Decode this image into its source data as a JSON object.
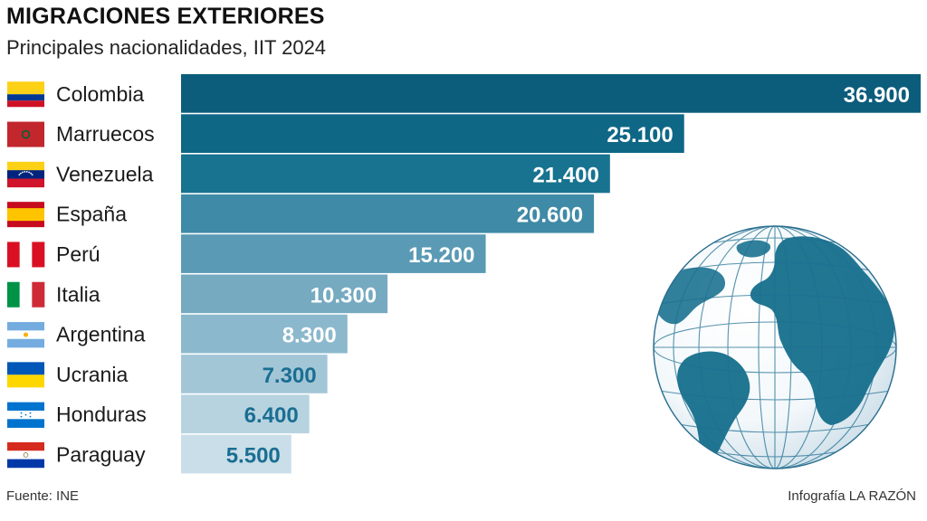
{
  "header": {
    "title": "MIGRACIONES EXTERIORES",
    "subtitle": "Principales nacionalidades, IIT 2024"
  },
  "footer": {
    "source": "Fuente: INE",
    "credit": "Infografía LA RAZÓN"
  },
  "colors": {
    "bars": [
      "#0c5d7b",
      "#0f6786",
      "#17738f",
      "#3f8aa6",
      "#5a9ab4",
      "#75aac0",
      "#8bb8cc",
      "#a3c6d7",
      "#b7d3e0",
      "#c9dee8"
    ],
    "value_text_dark_bars": "#ffffff",
    "value_text_light_bars": "#1a6e92"
  },
  "chart_data": {
    "type": "bar",
    "orientation": "horizontal",
    "title": "MIGRACIONES EXTERIORES",
    "subtitle": "Principales nacionalidades, IIT 2024",
    "categories": [
      "Colombia",
      "Marruecos",
      "Venezuela",
      "España",
      "Perú",
      "Italia",
      "Argentina",
      "Ucrania",
      "Honduras",
      "Paraguay"
    ],
    "values": [
      36900,
      25100,
      21400,
      20600,
      15200,
      10300,
      8300,
      7300,
      6400,
      5500
    ],
    "value_labels": [
      "36.900",
      "25.100",
      "21.400",
      "20.600",
      "15.200",
      "10.300",
      "8.300",
      "7.300",
      "6.400",
      "5.500"
    ],
    "flags": [
      "colombia-flag",
      "morocco-flag",
      "venezuela-flag",
      "spain-flag",
      "peru-flag",
      "italy-flag",
      "argentina-flag",
      "ukraine-flag",
      "honduras-flag",
      "paraguay-flag"
    ],
    "xlim": [
      0,
      36900
    ],
    "grid": false,
    "legend": "none"
  }
}
